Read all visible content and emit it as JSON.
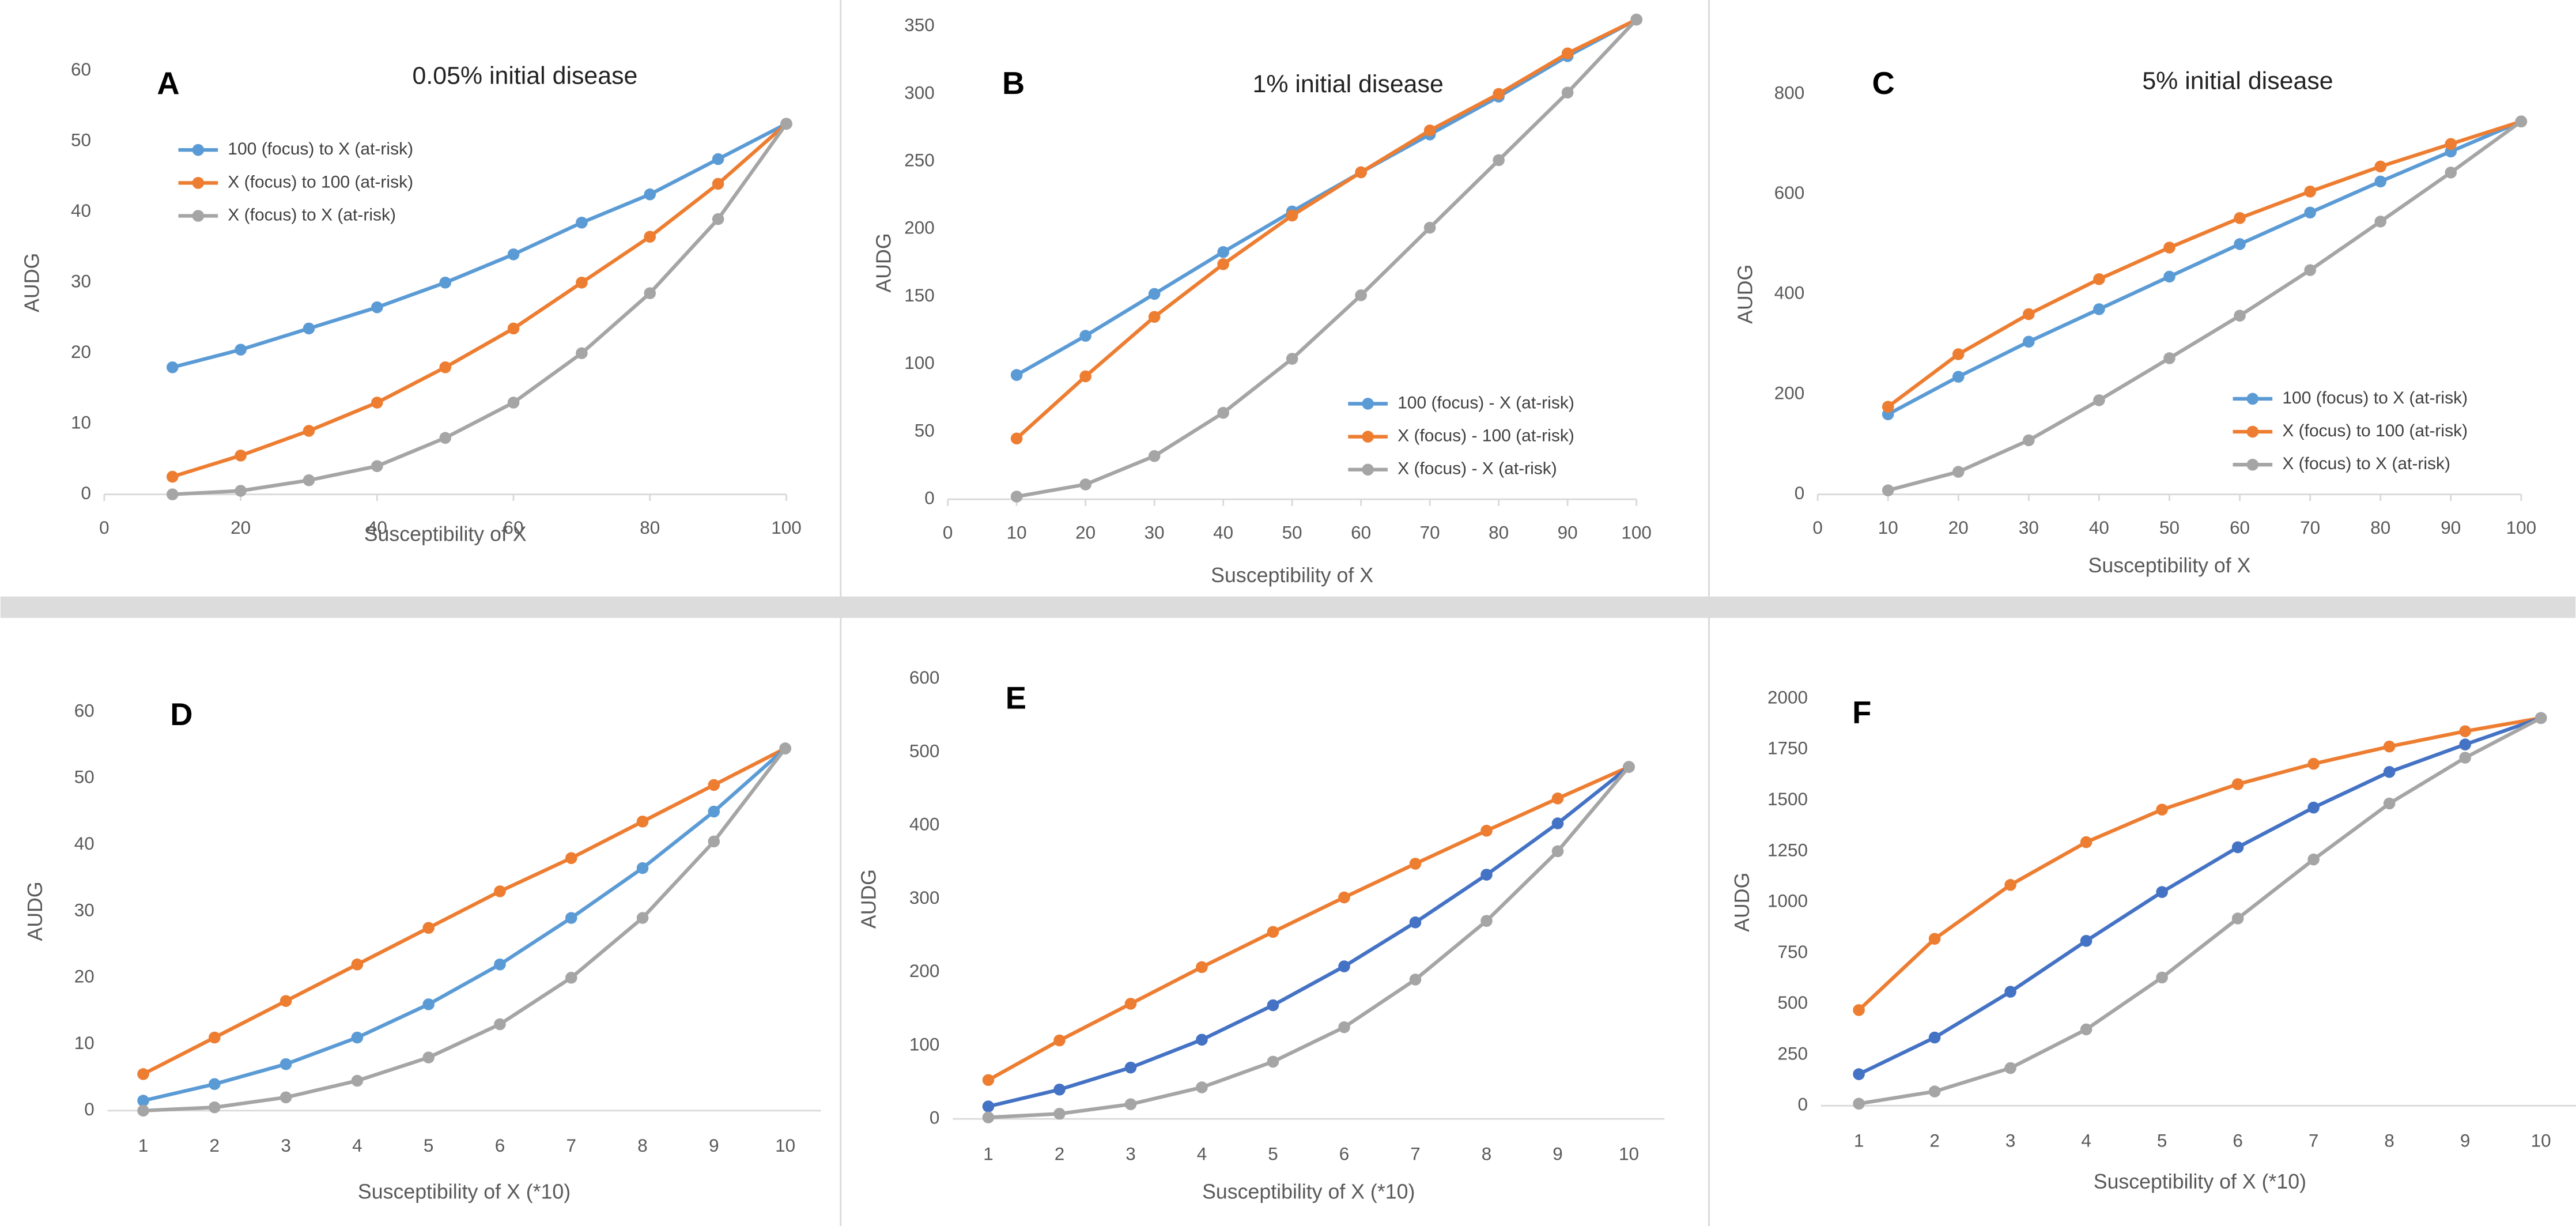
{
  "chart_data": [
    {
      "type": "line",
      "label": "A",
      "title": "0.05% initial disease",
      "xlabel": "Susceptibility of X",
      "ylabel": "AUDG",
      "x": [
        10,
        20,
        30,
        40,
        50,
        60,
        70,
        80,
        90,
        100
      ],
      "xlim": [
        0,
        100
      ],
      "xticks": [
        0,
        20,
        40,
        60,
        80,
        100
      ],
      "ylim": [
        0,
        60
      ],
      "yticks": [
        0,
        10,
        20,
        30,
        40,
        50,
        60
      ],
      "grid": false,
      "legend": "upper left",
      "series": [
        {
          "name": "100 (focus) to X (at-risk)",
          "color": "#5b9bd5",
          "values": [
            18,
            20.5,
            23.5,
            26.5,
            30,
            34,
            38.5,
            42.5,
            47.5,
            52.5
          ]
        },
        {
          "name": "X (focus) to 100 (at-risk)",
          "color": "#ed7d31",
          "values": [
            2.5,
            5.5,
            9,
            13,
            18,
            23.5,
            30,
            36.5,
            44,
            52.5
          ]
        },
        {
          "name": "X (focus) to X (at-risk)",
          "color": "#a5a5a5",
          "values": [
            0,
            0.5,
            2,
            4,
            8,
            13,
            20,
            28.5,
            39,
            52.5
          ]
        }
      ]
    },
    {
      "type": "line",
      "label": "B",
      "title": "1% initial disease",
      "xlabel": "Susceptibility of X",
      "ylabel": "AUDG",
      "x": [
        10,
        20,
        30,
        40,
        50,
        60,
        70,
        80,
        90,
        100
      ],
      "xlim": [
        0,
        100
      ],
      "xticks": [
        0,
        10,
        20,
        30,
        40,
        50,
        60,
        70,
        80,
        90,
        100
      ],
      "ylim": [
        0,
        350
      ],
      "yticks": [
        0,
        50,
        100,
        150,
        200,
        250,
        300,
        350
      ],
      "grid": false,
      "legend": "lower right",
      "series": [
        {
          "name": "100 (focus) - X (at-risk)",
          "color": "#5b9bd5",
          "values": [
            92,
            121,
            152,
            183,
            213,
            242,
            270,
            298,
            328,
            355
          ]
        },
        {
          "name": "X (focus) - 100 (at-risk)",
          "color": "#ed7d31",
          "values": [
            45,
            91,
            135,
            174,
            210,
            242,
            273,
            300,
            330,
            355
          ]
        },
        {
          "name": "X (focus) - X (at-risk)",
          "color": "#a5a5a5",
          "values": [
            2,
            11,
            32,
            64,
            104,
            151,
            201,
            251,
            301,
            355
          ]
        }
      ]
    },
    {
      "type": "line",
      "label": "C",
      "title": "5% initial disease",
      "xlabel": "Susceptibility of X",
      "ylabel": "AUDG",
      "x": [
        10,
        20,
        30,
        40,
        50,
        60,
        70,
        80,
        90,
        100
      ],
      "xlim": [
        0,
        100
      ],
      "xticks": [
        0,
        10,
        20,
        30,
        40,
        50,
        60,
        70,
        80,
        90,
        100
      ],
      "ylim": [
        0,
        800
      ],
      "yticks": [
        0,
        200,
        400,
        600,
        800
      ],
      "grid": false,
      "legend": "lower right",
      "series": [
        {
          "name": "100 (focus) to X (at-risk)",
          "color": "#5b9bd5",
          "values": [
            160,
            235,
            305,
            370,
            435,
            500,
            563,
            625,
            685,
            745
          ]
        },
        {
          "name": "X (focus) to 100 (at-risk)",
          "color": "#ed7d31",
          "values": [
            175,
            280,
            360,
            430,
            493,
            552,
            605,
            655,
            700,
            745
          ]
        },
        {
          "name": "X (focus) to X (at-risk)",
          "color": "#a5a5a5",
          "values": [
            8,
            45,
            108,
            188,
            272,
            357,
            448,
            545,
            643,
            745
          ]
        }
      ]
    },
    {
      "type": "line",
      "label": "D",
      "xlabel": "Susceptibility of X (*10)",
      "ylabel": "AUDG",
      "categories": [
        "1",
        "2",
        "3",
        "4",
        "5",
        "6",
        "7",
        "8",
        "9",
        "10"
      ],
      "ylim": [
        0,
        60
      ],
      "yticks": [
        0,
        10,
        20,
        30,
        40,
        50,
        60
      ],
      "grid": false,
      "series": [
        {
          "color": "#ed7d31",
          "values": [
            5.5,
            11,
            16.5,
            22,
            27.5,
            33,
            38,
            43.5,
            49,
            54.5
          ]
        },
        {
          "color": "#5b9bd5",
          "values": [
            1.5,
            4,
            7,
            11,
            16,
            22,
            29,
            36.5,
            45,
            54.5
          ]
        },
        {
          "color": "#a5a5a5",
          "values": [
            0,
            0.5,
            2,
            4.5,
            8,
            13,
            20,
            29,
            40.5,
            54.5
          ]
        }
      ]
    },
    {
      "type": "line",
      "label": "E",
      "xlabel": "Susceptibility of X (*10)",
      "ylabel": "AUDG",
      "categories": [
        "1",
        "2",
        "3",
        "4",
        "5",
        "6",
        "7",
        "8",
        "9",
        "10"
      ],
      "ylim": [
        0,
        600
      ],
      "yticks": [
        0,
        100,
        200,
        300,
        400,
        500,
        600
      ],
      "grid": false,
      "series": [
        {
          "color": "#ed7d31",
          "values": [
            53,
            107,
            157,
            207,
            255,
            302,
            348,
            393,
            437,
            480
          ]
        },
        {
          "color": "#4472c4",
          "values": [
            17,
            40,
            70,
            108,
            155,
            208,
            268,
            333,
            403,
            480
          ]
        },
        {
          "color": "#a5a5a5",
          "values": [
            2,
            7,
            20,
            43,
            78,
            125,
            190,
            270,
            365,
            480
          ]
        }
      ]
    },
    {
      "type": "line",
      "label": "F",
      "xlabel": "Susceptibility of X (*10)",
      "ylabel": "AUDG",
      "categories": [
        "1",
        "2",
        "3",
        "4",
        "5",
        "6",
        "7",
        "8",
        "9",
        "10"
      ],
      "ylim": [
        0,
        2000
      ],
      "yticks": [
        0,
        250,
        500,
        750,
        1000,
        1250,
        1500,
        1750,
        2000
      ],
      "grid": false,
      "series": [
        {
          "color": "#ed7d31",
          "values": [
            470,
            820,
            1085,
            1295,
            1455,
            1580,
            1680,
            1765,
            1840,
            1905
          ]
        },
        {
          "color": "#4472c4",
          "values": [
            155,
            335,
            560,
            810,
            1050,
            1270,
            1465,
            1640,
            1775,
            1905
          ]
        },
        {
          "color": "#a5a5a5",
          "values": [
            10,
            70,
            185,
            375,
            630,
            920,
            1210,
            1485,
            1710,
            1905
          ]
        }
      ]
    }
  ]
}
